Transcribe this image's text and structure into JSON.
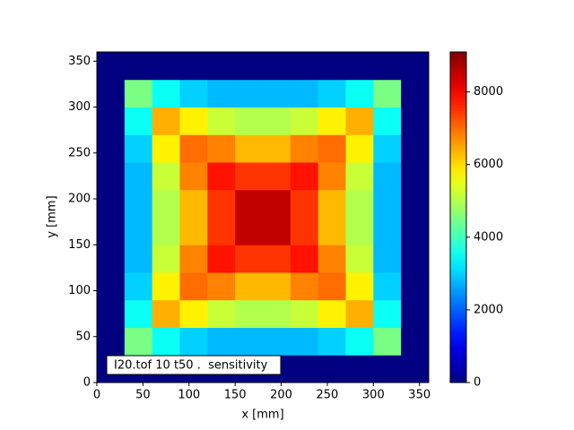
{
  "chart_data": {
    "type": "heatmap",
    "xlabel": "x [mm]",
    "ylabel": "y [mm]",
    "annotation": "I20.tof 10 t50 .  sensitivity",
    "colormap": "jet",
    "xbins": [
      0,
      30,
      60,
      90,
      120,
      150,
      180,
      210,
      240,
      270,
      300,
      330,
      360
    ],
    "ybins": [
      0,
      30,
      60,
      90,
      120,
      150,
      180,
      210,
      240,
      270,
      300,
      330,
      360
    ],
    "z": [
      [
        0,
        0,
        0,
        0,
        0,
        0,
        0,
        0,
        0,
        0,
        0,
        0
      ],
      [
        0,
        4500,
        3500,
        3000,
        2800,
        2800,
        2800,
        2800,
        3000,
        3500,
        4500,
        0
      ],
      [
        0,
        3500,
        6400,
        5800,
        5200,
        5000,
        5000,
        5200,
        5800,
        6400,
        3500,
        0
      ],
      [
        0,
        3000,
        5800,
        7000,
        6800,
        6300,
        6300,
        6800,
        7000,
        5800,
        3000,
        0
      ],
      [
        0,
        2800,
        5200,
        6800,
        7800,
        7500,
        7500,
        7800,
        6800,
        5200,
        2800,
        0
      ],
      [
        0,
        2800,
        5000,
        6300,
        7500,
        8500,
        8500,
        7500,
        6300,
        5000,
        2800,
        0
      ],
      [
        0,
        2800,
        5000,
        6300,
        7500,
        8500,
        8500,
        7500,
        6300,
        5000,
        2800,
        0
      ],
      [
        0,
        2800,
        5200,
        6800,
        7800,
        7500,
        7500,
        7800,
        6800,
        5200,
        2800,
        0
      ],
      [
        0,
        3000,
        5800,
        7000,
        6800,
        6300,
        6300,
        6800,
        7000,
        5800,
        3000,
        0
      ],
      [
        0,
        3500,
        6400,
        5800,
        5200,
        5000,
        5000,
        5200,
        5800,
        6400,
        3500,
        0
      ],
      [
        0,
        4500,
        3500,
        3000,
        2800,
        2800,
        2800,
        2800,
        3000,
        3500,
        4500,
        0
      ],
      [
        0,
        0,
        0,
        0,
        0,
        0,
        0,
        0,
        0,
        0,
        0,
        0
      ]
    ],
    "xlim": [
      0,
      360
    ],
    "ylim": [
      0,
      360
    ],
    "xticks": [
      0,
      50,
      100,
      150,
      200,
      250,
      300,
      350
    ],
    "yticks": [
      0,
      50,
      100,
      150,
      200,
      250,
      300,
      350
    ],
    "clim": [
      0,
      9100
    ],
    "cticks": [
      0,
      2000,
      4000,
      6000,
      8000
    ]
  }
}
